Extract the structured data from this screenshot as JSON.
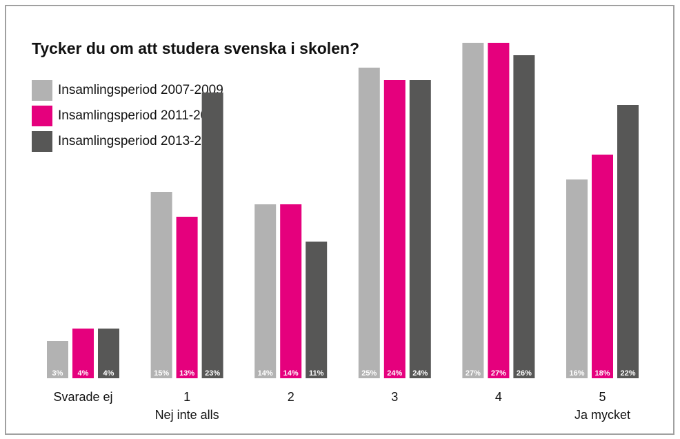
{
  "chart_data": {
    "type": "bar",
    "title": "Tycker du om att studera svenska i skolen?",
    "categories": [
      "Svarade ej",
      "1",
      "2",
      "3",
      "4",
      "5"
    ],
    "scale_labels": {
      "low": "Nej inte alls",
      "high": "Ja mycket"
    },
    "series": [
      {
        "name": "Insamlingsperiod 2007-2009",
        "color": "#b2b2b2",
        "values": [
          3,
          15,
          14,
          25,
          27,
          16
        ],
        "value_labels": [
          "3%",
          "15%",
          "14%",
          "25%",
          "27%",
          "16%"
        ]
      },
      {
        "name": "Insamlingsperiod 2011-2012",
        "color": "#e5007d",
        "values": [
          4,
          13,
          14,
          24,
          27,
          18
        ],
        "value_labels": [
          "4%",
          "13%",
          "14%",
          "24%",
          "27%",
          "18%"
        ]
      },
      {
        "name": "Insamlingsperiod 2013-2014",
        "color": "#575756",
        "values": [
          4,
          23,
          11,
          24,
          26,
          22
        ],
        "value_labels": [
          "4%",
          "23%",
          "11%",
          "24%",
          "26%",
          "22%"
        ]
      }
    ],
    "ylim": [
      0,
      27
    ]
  }
}
